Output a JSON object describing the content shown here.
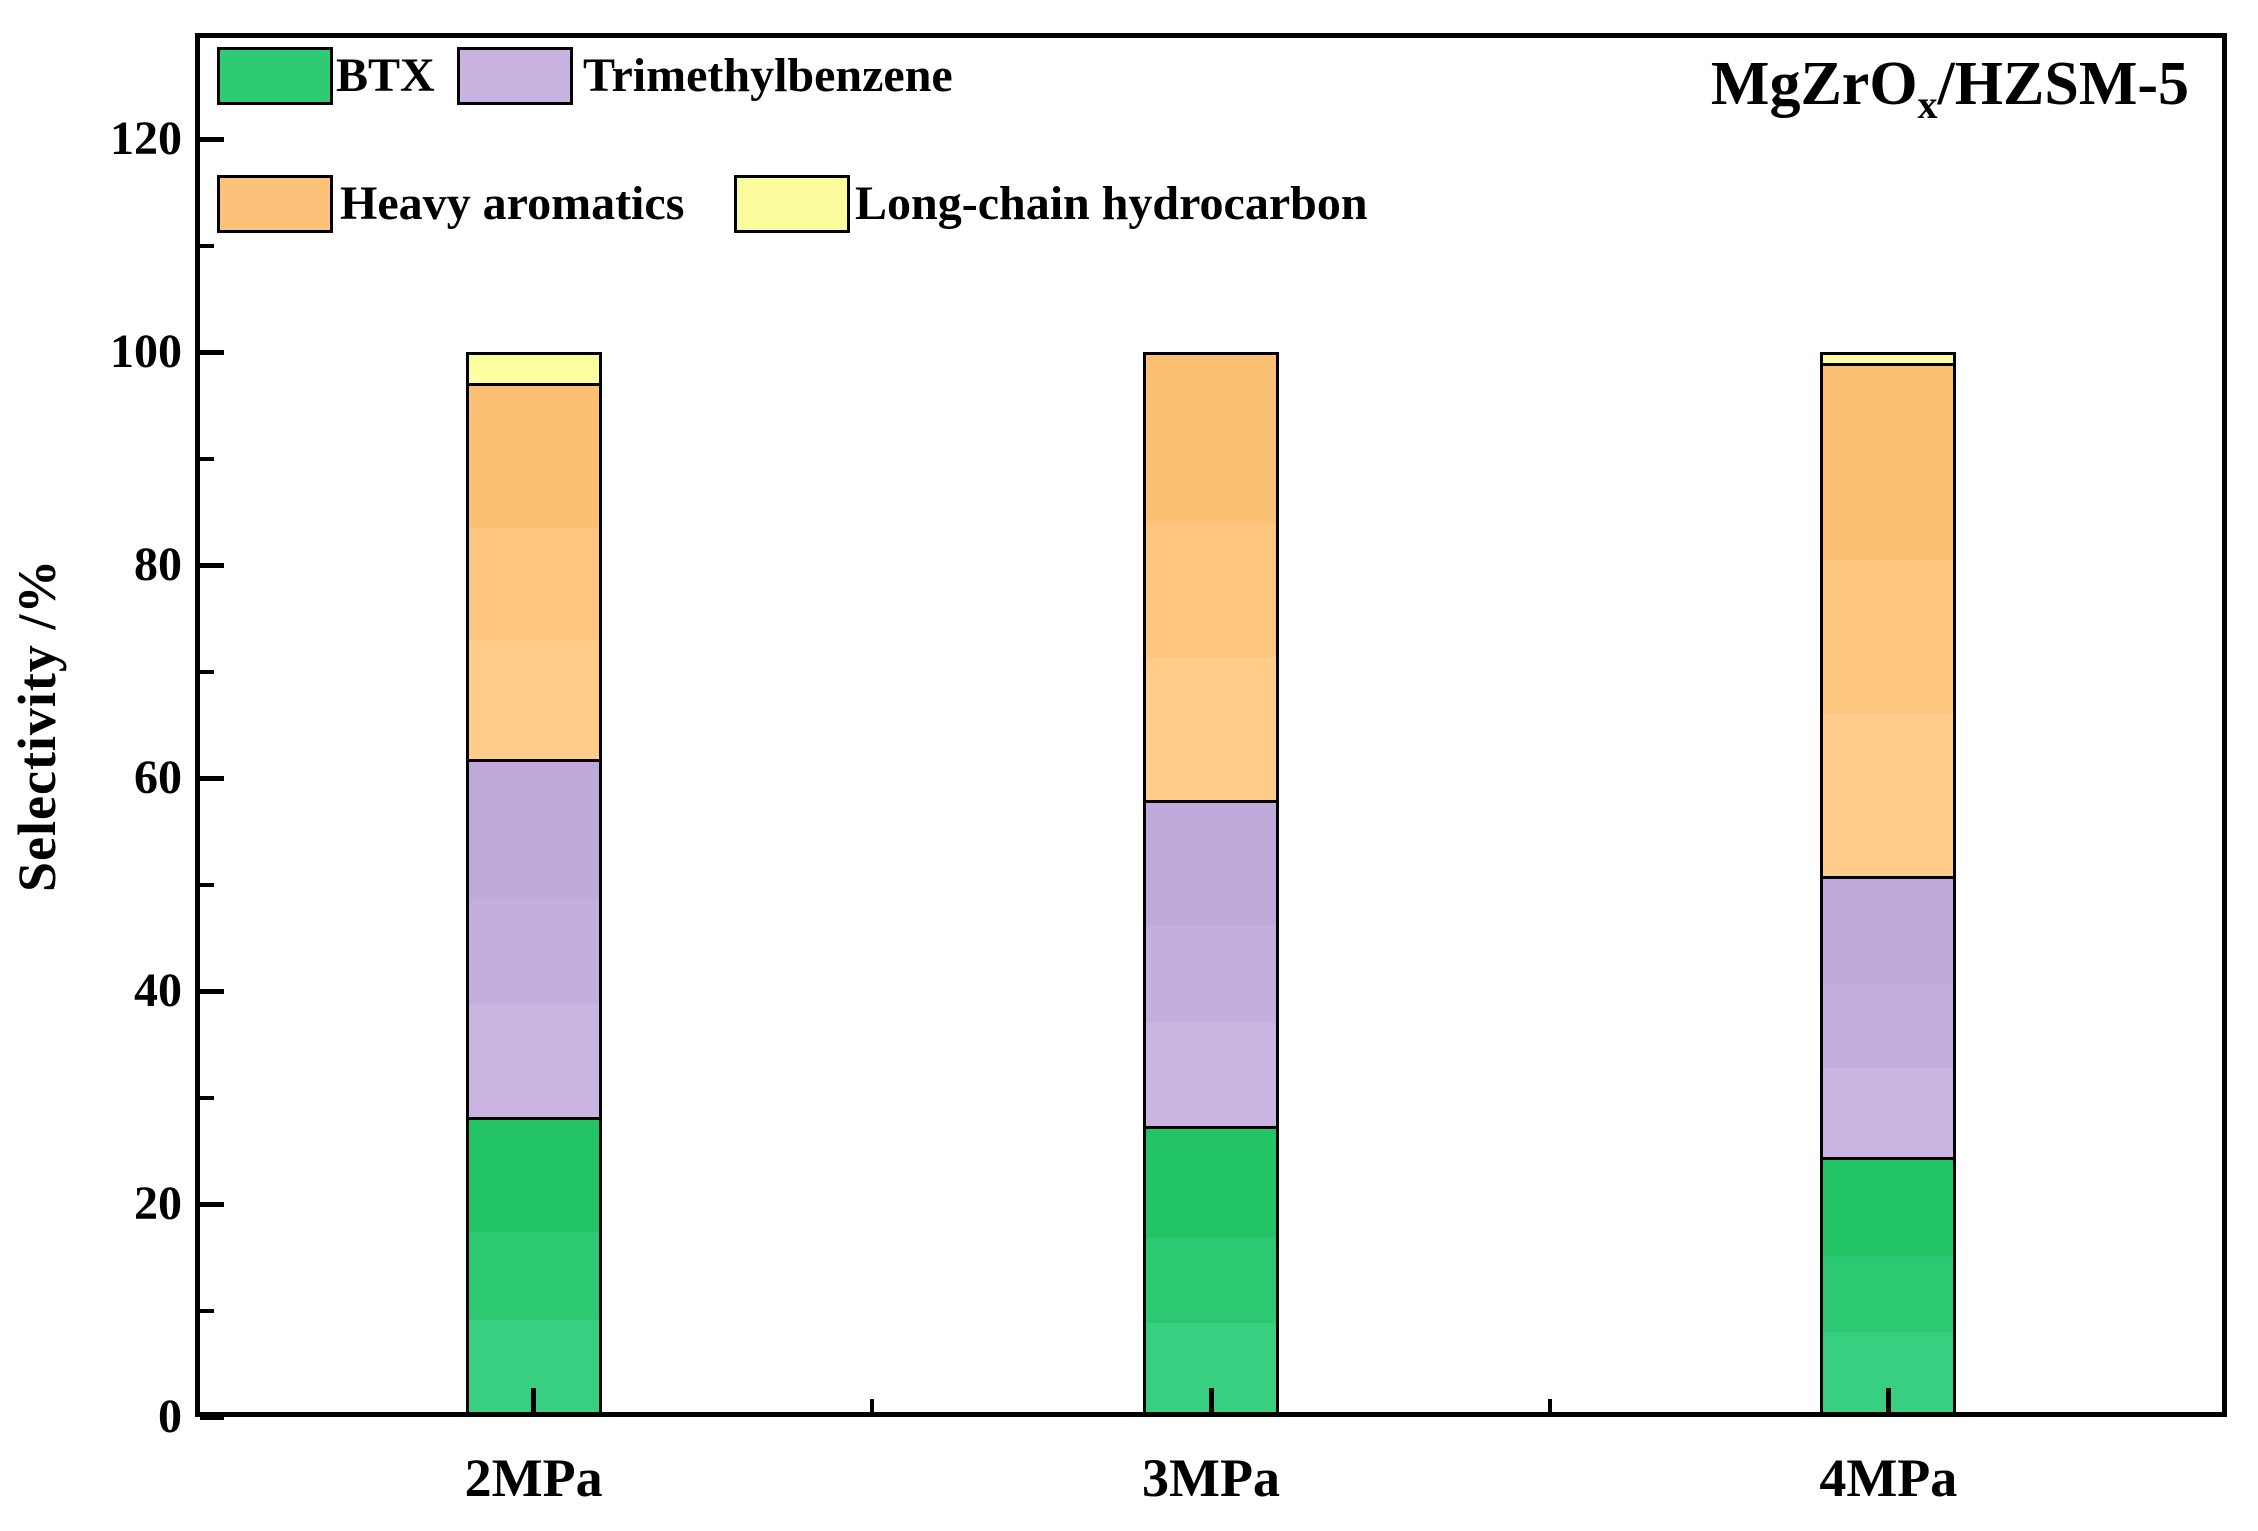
{
  "figure": {
    "title": {
      "prefix": "MgZrO",
      "subscript": "x",
      "suffix": "/HZSM-5"
    }
  },
  "chart_data": {
    "type": "bar",
    "stacked": true,
    "title": "MgZrOx/HZSM-5",
    "ylabel": "Selectivity /%",
    "xlabel": "",
    "categories": [
      "2MPa",
      "3MPa",
      "4MPa"
    ],
    "series": [
      {
        "name": "BTX",
        "color": "#2fca74",
        "gradient": [
          "#23c466",
          "#2cc972",
          "#38cf80"
        ],
        "values": [
          28.2,
          27.3,
          24.4
        ]
      },
      {
        "name": "Trimethylbenzene",
        "color": "#c8b2e0",
        "gradient": [
          "#bfa8da",
          "#c4aede",
          "#cab5e2"
        ],
        "values": [
          33.6,
          30.7,
          26.4
        ]
      },
      {
        "name": "Heavy aromatics",
        "color": "#fcc27a",
        "gradient": [
          "#fcc073",
          "#fdc67e",
          "#ffcc89"
        ],
        "values": [
          35.3,
          42.0,
          48.2
        ]
      },
      {
        "name": "Long-chain hydrocarbon",
        "color": "#fbfc9c",
        "gradient": [
          "#fbfc9c",
          "#fcfe9f",
          "#fdffa2"
        ],
        "values": [
          2.9,
          0,
          1.0
        ]
      }
    ],
    "ylim": [
      0,
      130
    ],
    "yticks_major": [
      0,
      20,
      40,
      60,
      80,
      100,
      120
    ],
    "yticks_minor": [
      10,
      30,
      50,
      70,
      90,
      110
    ],
    "legend_position": "top-left-inside",
    "grid": false,
    "frame": true,
    "tick_direction": "in"
  }
}
